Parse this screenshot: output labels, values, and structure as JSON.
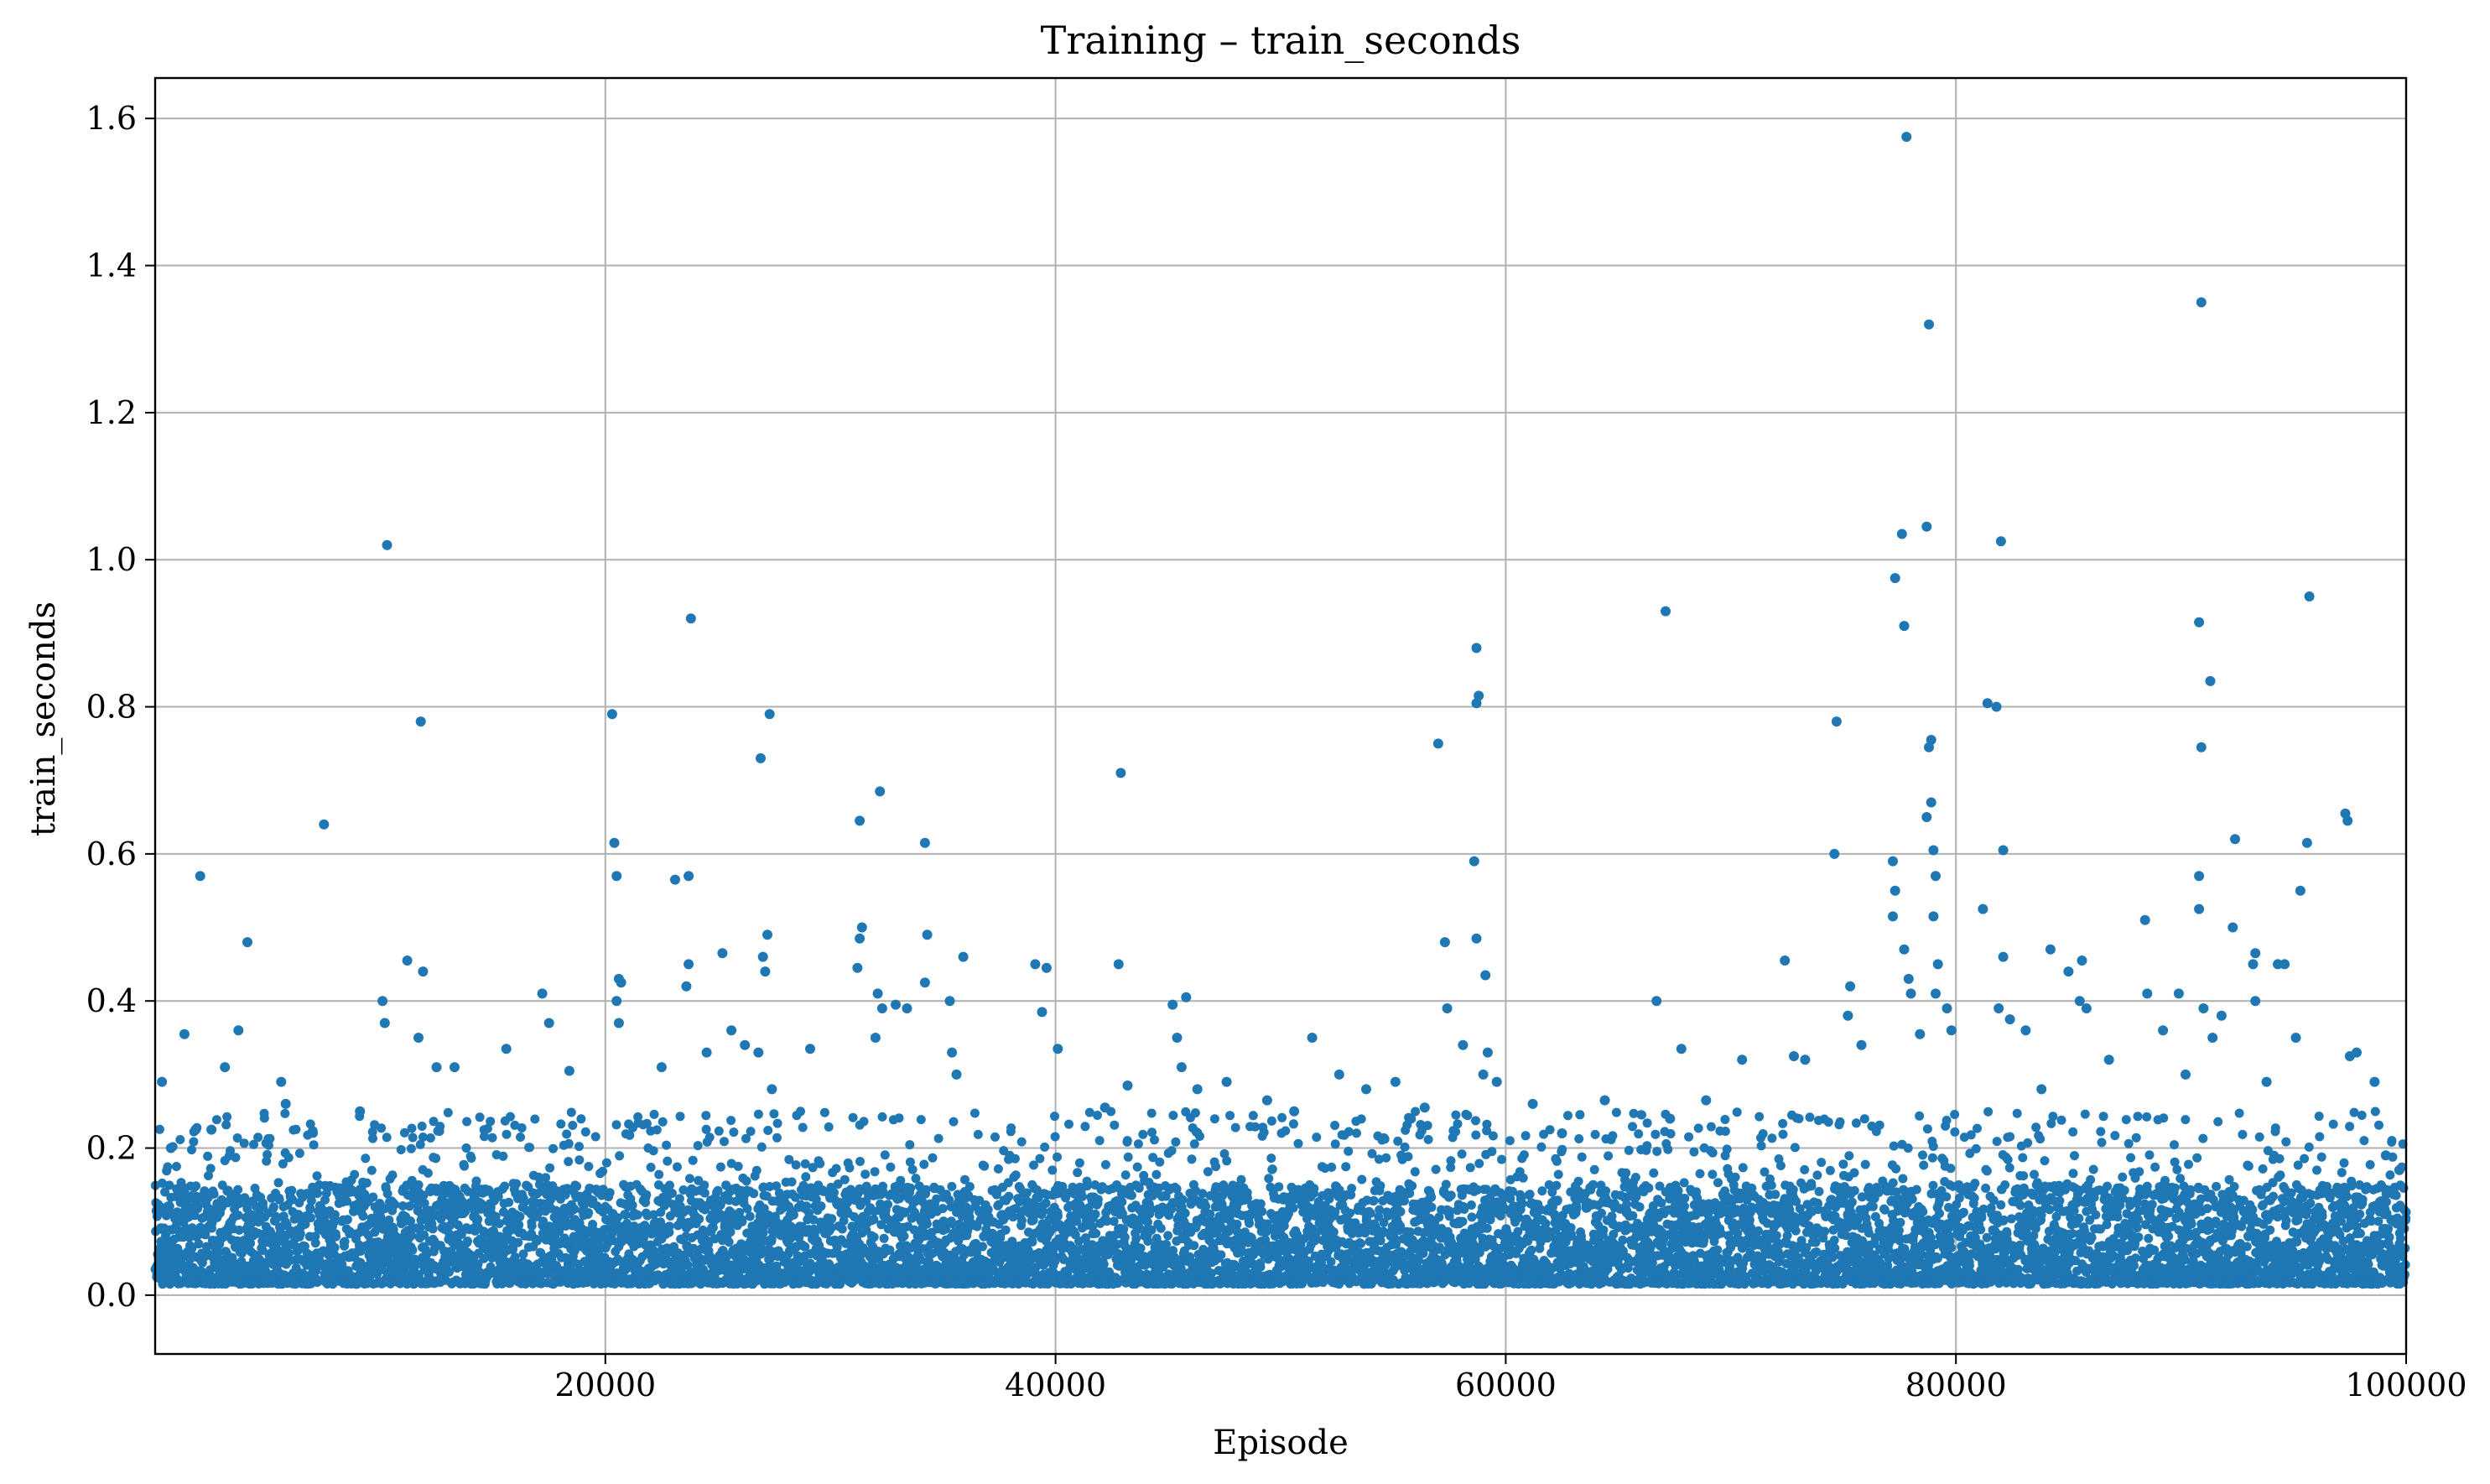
{
  "chart_data": {
    "type": "scatter",
    "title": "Training – train_seconds",
    "xlabel": "Episode",
    "ylabel": "train_seconds",
    "xlim": [
      0,
      100000
    ],
    "ylim": [
      -0.08,
      1.655
    ],
    "x_ticks": [
      20000,
      40000,
      60000,
      80000,
      100000
    ],
    "y_ticks": [
      0.0,
      0.2,
      0.4,
      0.6,
      0.8,
      1.0,
      1.2,
      1.4,
      1.6
    ],
    "grid": true,
    "legend": "none",
    "marker_color": "#1f77b4",
    "points_summary": "About 100000 points, one per episode 0 to 100000; most values between 0.02 and 0.2, scattered outliers up to about 1.6",
    "base_band": {
      "low": 0.015,
      "typical_high": 0.15,
      "spike_max": 0.25
    },
    "outliers": [
      [
        300,
        0.29
      ],
      [
        700,
        0.2
      ],
      [
        1300,
        0.355
      ],
      [
        2000,
        0.57
      ],
      [
        1800,
        0.225
      ],
      [
        2500,
        0.225
      ],
      [
        3100,
        0.31
      ],
      [
        3700,
        0.36
      ],
      [
        4100,
        0.48
      ],
      [
        5800,
        0.26
      ],
      [
        5600,
        0.29
      ],
      [
        7500,
        0.64
      ],
      [
        9100,
        0.25
      ],
      [
        10100,
        0.4
      ],
      [
        10300,
        1.02
      ],
      [
        10200,
        0.37
      ],
      [
        11200,
        0.455
      ],
      [
        11900,
        0.44
      ],
      [
        11800,
        0.78
      ],
      [
        11700,
        0.35
      ],
      [
        12500,
        0.31
      ],
      [
        13300,
        0.31
      ],
      [
        15600,
        0.335
      ],
      [
        17200,
        0.41
      ],
      [
        17500,
        0.37
      ],
      [
        18400,
        0.305
      ],
      [
        20300,
        0.79
      ],
      [
        20400,
        0.615
      ],
      [
        20500,
        0.57
      ],
      [
        20600,
        0.43
      ],
      [
        20700,
        0.425
      ],
      [
        20500,
        0.4
      ],
      [
        20600,
        0.37
      ],
      [
        22500,
        0.31
      ],
      [
        23100,
        0.565
      ],
      [
        23700,
        0.57
      ],
      [
        23800,
        0.92
      ],
      [
        23700,
        0.45
      ],
      [
        23600,
        0.42
      ],
      [
        24500,
        0.33
      ],
      [
        25200,
        0.465
      ],
      [
        25600,
        0.36
      ],
      [
        26200,
        0.34
      ],
      [
        26800,
        0.33
      ],
      [
        26900,
        0.73
      ],
      [
        27300,
        0.79
      ],
      [
        27200,
        0.49
      ],
      [
        27000,
        0.46
      ],
      [
        27100,
        0.44
      ],
      [
        27400,
        0.28
      ],
      [
        29100,
        0.335
      ],
      [
        31300,
        0.645
      ],
      [
        31400,
        0.5
      ],
      [
        31300,
        0.485
      ],
      [
        31200,
        0.445
      ],
      [
        32200,
        0.685
      ],
      [
        32100,
        0.41
      ],
      [
        32300,
        0.39
      ],
      [
        32000,
        0.35
      ],
      [
        32900,
        0.395
      ],
      [
        33400,
        0.39
      ],
      [
        34200,
        0.615
      ],
      [
        34300,
        0.49
      ],
      [
        34200,
        0.425
      ],
      [
        35300,
        0.4
      ],
      [
        35400,
        0.33
      ],
      [
        35900,
        0.46
      ],
      [
        35600,
        0.3
      ],
      [
        39100,
        0.45
      ],
      [
        39600,
        0.445
      ],
      [
        39400,
        0.385
      ],
      [
        40100,
        0.335
      ],
      [
        42200,
        0.255
      ],
      [
        42900,
        0.71
      ],
      [
        42800,
        0.45
      ],
      [
        43200,
        0.285
      ],
      [
        45200,
        0.395
      ],
      [
        45800,
        0.405
      ],
      [
        45400,
        0.35
      ],
      [
        45600,
        0.31
      ],
      [
        46300,
        0.28
      ],
      [
        47600,
        0.29
      ],
      [
        49400,
        0.265
      ],
      [
        50600,
        0.25
      ],
      [
        51400,
        0.35
      ],
      [
        52600,
        0.3
      ],
      [
        53800,
        0.28
      ],
      [
        55100,
        0.29
      ],
      [
        56400,
        0.255
      ],
      [
        57000,
        0.75
      ],
      [
        57300,
        0.48
      ],
      [
        57400,
        0.39
      ],
      [
        58100,
        0.34
      ],
      [
        58700,
        0.88
      ],
      [
        58800,
        0.815
      ],
      [
        58700,
        0.805
      ],
      [
        58600,
        0.59
      ],
      [
        58700,
        0.485
      ],
      [
        59100,
        0.435
      ],
      [
        59200,
        0.33
      ],
      [
        59000,
        0.3
      ],
      [
        59600,
        0.29
      ],
      [
        61200,
        0.26
      ],
      [
        62500,
        0.22
      ],
      [
        64400,
        0.265
      ],
      [
        66700,
        0.4
      ],
      [
        67100,
        0.93
      ],
      [
        67800,
        0.335
      ],
      [
        67300,
        0.24
      ],
      [
        68900,
        0.265
      ],
      [
        70500,
        0.32
      ],
      [
        72400,
        0.455
      ],
      [
        72800,
        0.325
      ],
      [
        73300,
        0.32
      ],
      [
        74700,
        0.78
      ],
      [
        74600,
        0.6
      ],
      [
        75300,
        0.42
      ],
      [
        75200,
        0.38
      ],
      [
        75800,
        0.34
      ],
      [
        77300,
        0.975
      ],
      [
        77600,
        1.035
      ],
      [
        77700,
        0.91
      ],
      [
        77200,
        0.59
      ],
      [
        77300,
        0.55
      ],
      [
        77200,
        0.515
      ],
      [
        77700,
        0.47
      ],
      [
        77800,
        1.575
      ],
      [
        77900,
        0.43
      ],
      [
        78000,
        0.41
      ],
      [
        78400,
        0.355
      ],
      [
        78800,
        1.32
      ],
      [
        78700,
        1.045
      ],
      [
        78900,
        0.755
      ],
      [
        78800,
        0.745
      ],
      [
        78900,
        0.67
      ],
      [
        78700,
        0.65
      ],
      [
        79000,
        0.605
      ],
      [
        79100,
        0.57
      ],
      [
        79000,
        0.515
      ],
      [
        79200,
        0.45
      ],
      [
        79100,
        0.41
      ],
      [
        79600,
        0.39
      ],
      [
        79800,
        0.36
      ],
      [
        81400,
        0.805
      ],
      [
        81800,
        0.8
      ],
      [
        81200,
        0.525
      ],
      [
        82000,
        1.025
      ],
      [
        82100,
        0.605
      ],
      [
        82100,
        0.46
      ],
      [
        81900,
        0.39
      ],
      [
        82400,
        0.375
      ],
      [
        83100,
        0.36
      ],
      [
        83800,
        0.28
      ],
      [
        84200,
        0.47
      ],
      [
        85000,
        0.44
      ],
      [
        85600,
        0.455
      ],
      [
        85500,
        0.4
      ],
      [
        85800,
        0.39
      ],
      [
        86800,
        0.32
      ],
      [
        88400,
        0.51
      ],
      [
        88500,
        0.41
      ],
      [
        89200,
        0.36
      ],
      [
        89900,
        0.41
      ],
      [
        90200,
        0.3
      ],
      [
        90900,
        1.35
      ],
      [
        90800,
        0.915
      ],
      [
        90900,
        0.745
      ],
      [
        91300,
        0.835
      ],
      [
        90800,
        0.57
      ],
      [
        90800,
        0.525
      ],
      [
        91000,
        0.39
      ],
      [
        91400,
        0.35
      ],
      [
        91800,
        0.38
      ],
      [
        92400,
        0.62
      ],
      [
        92300,
        0.5
      ],
      [
        93300,
        0.465
      ],
      [
        93200,
        0.45
      ],
      [
        93300,
        0.4
      ],
      [
        93800,
        0.29
      ],
      [
        94300,
        0.45
      ],
      [
        94600,
        0.45
      ],
      [
        95100,
        0.35
      ],
      [
        95300,
        0.55
      ],
      [
        95600,
        0.615
      ],
      [
        95700,
        0.95
      ],
      [
        97300,
        0.655
      ],
      [
        97400,
        0.645
      ],
      [
        97500,
        0.325
      ],
      [
        97800,
        0.33
      ],
      [
        98600,
        0.29
      ],
      [
        99100,
        0.19
      ],
      [
        99700,
        0.17
      ]
    ]
  }
}
